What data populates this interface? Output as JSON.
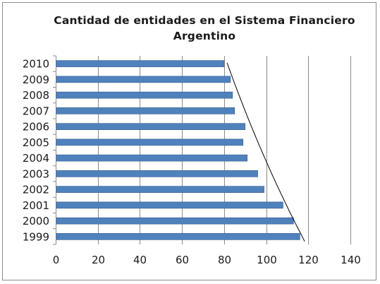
{
  "chart_data": {
    "type": "bar",
    "orientation": "horizontal",
    "title_lines": [
      "Cantidad de entidades en el Sistema Financiero",
      "Argentino"
    ],
    "categories": [
      "1999",
      "2000",
      "2001",
      "2002",
      "2003",
      "2004",
      "2005",
      "2006",
      "2007",
      "2008",
      "2009",
      "2010"
    ],
    "values": [
      116,
      113,
      108,
      99,
      96,
      91,
      89,
      90,
      85,
      84,
      83,
      80
    ],
    "xlim": [
      0,
      140
    ],
    "x_ticks": [
      "0",
      "20",
      "40",
      "60",
      "80",
      "100",
      "120",
      "140"
    ],
    "grid": "vertical major gridlines",
    "legend": "none",
    "trendline": true,
    "bar_color": "#4f81bd",
    "bar_edge_color": "#385d8a",
    "grid_color": "#8c8c8c",
    "trendline_color": "#000000"
  }
}
